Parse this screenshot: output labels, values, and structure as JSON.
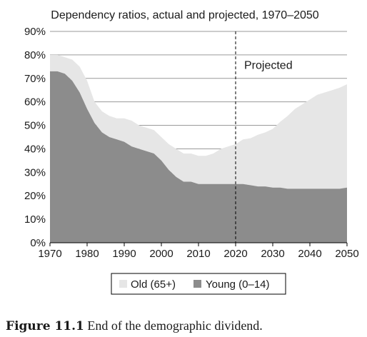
{
  "chart_data": {
    "type": "area",
    "stacked": true,
    "title": "Dependency ratios, actual and projected, 1970–2050",
    "xlim": [
      1970,
      2050
    ],
    "ylim": [
      0,
      90
    ],
    "x_ticks": [
      "1970",
      "1980",
      "1990",
      "2000",
      "2010",
      "2020",
      "2030",
      "2040",
      "2050"
    ],
    "y_ticks": [
      "0%",
      "10%",
      "20%",
      "30%",
      "40%",
      "50%",
      "60%",
      "70%",
      "80%",
      "90%"
    ],
    "grid": "horizontal",
    "legend_position": "bottom",
    "annotation": {
      "label": "Projected",
      "x": 2020
    },
    "series": [
      {
        "name": "Young (0–14)",
        "color": "#8c8c8c",
        "x": [
          1970,
          1972,
          1974,
          1976,
          1978,
          1980,
          1982,
          1984,
          1986,
          1988,
          1990,
          1992,
          1994,
          1996,
          1998,
          2000,
          2002,
          2004,
          2006,
          2008,
          2010,
          2012,
          2014,
          2016,
          2018,
          2020,
          2022,
          2024,
          2026,
          2028,
          2030,
          2032,
          2034,
          2036,
          2038,
          2040,
          2042,
          2044,
          2046,
          2048,
          2050
        ],
        "values": [
          73,
          73,
          72,
          69,
          64,
          57,
          51,
          47,
          45,
          44,
          43,
          41,
          40,
          39,
          38,
          35,
          31,
          28,
          26,
          26,
          25,
          25,
          25,
          25,
          25,
          25,
          25,
          24.5,
          24,
          24,
          23.5,
          23.5,
          23,
          23,
          23,
          23,
          23,
          23,
          23,
          23,
          23.5
        ]
      },
      {
        "name": "Old (65+)",
        "color": "#e6e6e6",
        "x": [
          1970,
          1972,
          1974,
          1976,
          1978,
          1980,
          1982,
          1984,
          1986,
          1988,
          1990,
          1992,
          1994,
          1996,
          1998,
          2000,
          2002,
          2004,
          2006,
          2008,
          2010,
          2012,
          2014,
          2016,
          2018,
          2020,
          2022,
          2024,
          2026,
          2028,
          2030,
          2032,
          2034,
          2036,
          2038,
          2040,
          2042,
          2044,
          2046,
          2048,
          2050
        ],
        "values": [
          7,
          7,
          7,
          9,
          11,
          12,
          9,
          9,
          9,
          9,
          10,
          11,
          10,
          10,
          10,
          10,
          11,
          12,
          12,
          12,
          12,
          12,
          13,
          15,
          16,
          17,
          19,
          20,
          22,
          23,
          25,
          28,
          31,
          34,
          36,
          38,
          40,
          41,
          42,
          43,
          44
        ]
      }
    ]
  },
  "legend": {
    "old_label": "Old (65+)",
    "young_label": "Young (0–14)"
  },
  "caption": {
    "prefix": "Figure 11.1",
    "text": " End of the demographic dividend."
  }
}
